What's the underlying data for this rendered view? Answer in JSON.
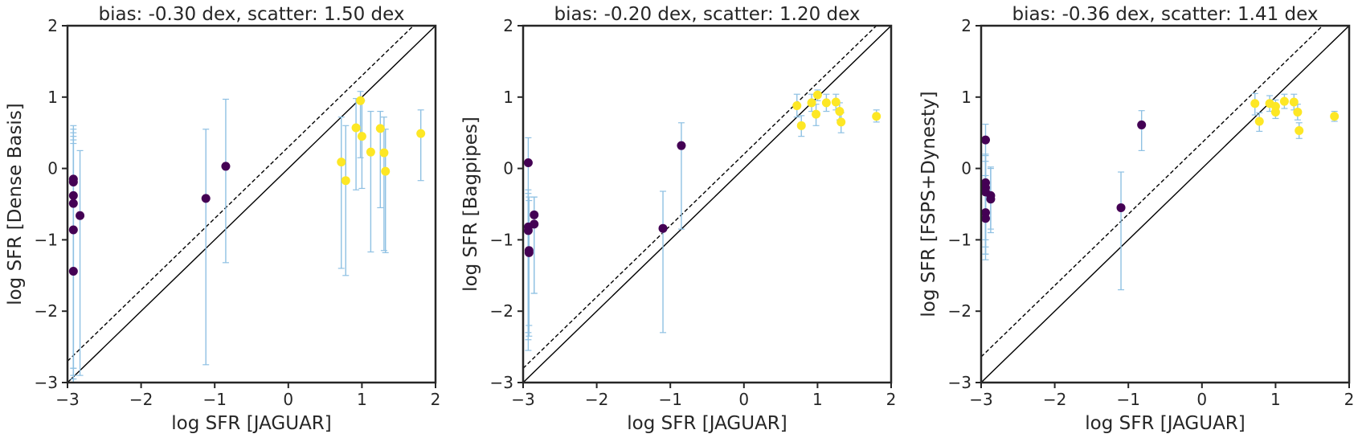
{
  "chart_data": [
    {
      "type": "scatter",
      "title": "bias: -0.30 dex, scatter: 1.50 dex",
      "xlabel": "log SFR [JAGUAR]",
      "ylabel": "log SFR [Dense Basis]",
      "xlim": [
        -3,
        2
      ],
      "ylim": [
        -3,
        2
      ],
      "xticks": [
        "−3",
        "−2",
        "−1",
        "0",
        "1",
        "2"
      ],
      "yticks": [
        "−3",
        "−2",
        "−1",
        "0",
        "1",
        "2"
      ],
      "grid": false,
      "reference_lines": [
        {
          "style": "solid",
          "slope": 1,
          "offset": 0
        },
        {
          "style": "dashed",
          "slope": 1,
          "offset": 0.3
        }
      ],
      "series": [
        {
          "color": "#440154",
          "points": [
            {
              "x": -2.92,
              "y": -0.15,
              "ylo": -3.1,
              "yhi": 0.6
            },
            {
              "x": -2.92,
              "y": -0.19,
              "ylo": -2.8,
              "yhi": 0.55
            },
            {
              "x": -2.92,
              "y": -0.38,
              "ylo": -2.9,
              "yhi": 0.35
            },
            {
              "x": -2.92,
              "y": -0.49,
              "ylo": -2.95,
              "yhi": 0.45
            },
            {
              "x": -2.92,
              "y": -0.86,
              "ylo": -2.8,
              "yhi": 0.5
            },
            {
              "x": -2.92,
              "y": -1.44,
              "ylo": -3.05,
              "yhi": 0.4
            },
            {
              "x": -2.83,
              "y": -0.66,
              "ylo": -2.9,
              "yhi": 0.25
            },
            {
              "x": -1.12,
              "y": -0.42,
              "ylo": -2.75,
              "yhi": 0.55
            },
            {
              "x": -0.85,
              "y": 0.03,
              "ylo": -1.32,
              "yhi": 0.97
            }
          ]
        },
        {
          "color": "#fde725",
          "points": [
            {
              "x": 0.72,
              "y": 0.09,
              "ylo": -1.4,
              "yhi": 0.72
            },
            {
              "x": 0.78,
              "y": -0.17,
              "ylo": -1.5,
              "yhi": 0.6
            },
            {
              "x": 0.92,
              "y": 0.57,
              "ylo": -0.3,
              "yhi": 0.98
            },
            {
              "x": 0.98,
              "y": 0.95,
              "ylo": 0.15,
              "yhi": 1.08
            },
            {
              "x": 1.0,
              "y": 0.45,
              "ylo": -0.28,
              "yhi": 0.95
            },
            {
              "x": 1.12,
              "y": 0.23,
              "ylo": -1.17,
              "yhi": 0.8
            },
            {
              "x": 1.25,
              "y": 0.56,
              "ylo": -0.55,
              "yhi": 0.8
            },
            {
              "x": 1.3,
              "y": 0.22,
              "ylo": -1.15,
              "yhi": 0.72
            },
            {
              "x": 1.32,
              "y": -0.04,
              "ylo": -1.18,
              "yhi": 0.55
            },
            {
              "x": 1.8,
              "y": 0.49,
              "ylo": -0.17,
              "yhi": 0.82
            }
          ]
        }
      ]
    },
    {
      "type": "scatter",
      "title": "bias: -0.20 dex, scatter: 1.20 dex",
      "xlabel": "log SFR [JAGUAR]",
      "ylabel": "log SFR [Bagpipes]",
      "xlim": [
        -3,
        2
      ],
      "ylim": [
        -3,
        2
      ],
      "xticks": [
        "−3",
        "−2",
        "−1",
        "0",
        "1",
        "2"
      ],
      "yticks": [
        "−3",
        "−2",
        "−1",
        "0",
        "1",
        "2"
      ],
      "grid": false,
      "reference_lines": [
        {
          "style": "solid",
          "slope": 1,
          "offset": 0
        },
        {
          "style": "dashed",
          "slope": 1,
          "offset": 0.2
        }
      ],
      "series": [
        {
          "color": "#440154",
          "points": [
            {
              "x": -2.93,
              "y": 0.08,
              "ylo": -2.3,
              "yhi": 0.43
            },
            {
              "x": -2.93,
              "y": -0.82,
              "ylo": -2.55,
              "yhi": -0.3
            },
            {
              "x": -2.93,
              "y": -0.87,
              "ylo": -2.4,
              "yhi": -0.35
            },
            {
              "x": -2.92,
              "y": -1.15,
              "ylo": -2.35,
              "yhi": -0.4
            },
            {
              "x": -2.92,
              "y": -1.18,
              "ylo": -2.2,
              "yhi": -0.45
            },
            {
              "x": -2.85,
              "y": -0.65,
              "ylo": -1.75,
              "yhi": -0.4
            },
            {
              "x": -2.85,
              "y": -0.78,
              "ylo": -1.75,
              "yhi": -0.4
            },
            {
              "x": -1.1,
              "y": -0.84,
              "ylo": -2.3,
              "yhi": -0.32
            },
            {
              "x": -0.85,
              "y": 0.32,
              "ylo": -0.85,
              "yhi": 0.64
            }
          ]
        },
        {
          "color": "#fde725",
          "points": [
            {
              "x": 0.72,
              "y": 0.88,
              "ylo": 0.72,
              "yhi": 1.04
            },
            {
              "x": 0.78,
              "y": 0.6,
              "ylo": 0.45,
              "yhi": 0.74
            },
            {
              "x": 0.92,
              "y": 0.92,
              "ylo": 0.8,
              "yhi": 1.04
            },
            {
              "x": 0.98,
              "y": 0.76,
              "ylo": 0.6,
              "yhi": 0.9
            },
            {
              "x": 1.0,
              "y": 1.03,
              "ylo": 0.95,
              "yhi": 1.1
            },
            {
              "x": 1.12,
              "y": 0.92,
              "ylo": 0.8,
              "yhi": 1.04
            },
            {
              "x": 1.25,
              "y": 0.93,
              "ylo": 0.82,
              "yhi": 1.04
            },
            {
              "x": 1.3,
              "y": 0.8,
              "ylo": 0.68,
              "yhi": 0.92
            },
            {
              "x": 1.32,
              "y": 0.65,
              "ylo": 0.5,
              "yhi": 0.78
            },
            {
              "x": 1.8,
              "y": 0.73,
              "ylo": 0.65,
              "yhi": 0.82
            }
          ]
        }
      ]
    },
    {
      "type": "scatter",
      "title": "bias: -0.36 dex, scatter: 1.41 dex",
      "xlabel": "log SFR [JAGUAR]",
      "ylabel": "log SFR [FSPS+Dynesty]",
      "xlim": [
        -3,
        2
      ],
      "ylim": [
        -3,
        2
      ],
      "xticks": [
        "−3",
        "−2",
        "−1",
        "0",
        "1",
        "2"
      ],
      "yticks": [
        "−3",
        "−2",
        "−1",
        "0",
        "1",
        "2"
      ],
      "grid": false,
      "reference_lines": [
        {
          "style": "solid",
          "slope": 1,
          "offset": 0
        },
        {
          "style": "dashed",
          "slope": 1,
          "offset": 0.36
        }
      ],
      "series": [
        {
          "color": "#440154",
          "points": [
            {
              "x": -2.94,
              "y": 0.4,
              "ylo": -0.3,
              "yhi": 0.62
            },
            {
              "x": -2.94,
              "y": -0.2,
              "ylo": -1.2,
              "yhi": 0.2
            },
            {
              "x": -2.94,
              "y": -0.27,
              "ylo": -1.28,
              "yhi": 0.18
            },
            {
              "x": -2.94,
              "y": -0.33,
              "ylo": -1.0,
              "yhi": 0.1
            },
            {
              "x": -2.94,
              "y": -0.62,
              "ylo": -1.1,
              "yhi": -0.1
            },
            {
              "x": -2.94,
              "y": -0.7,
              "ylo": -1.2,
              "yhi": -0.2
            },
            {
              "x": -2.87,
              "y": -0.38,
              "ylo": -0.9,
              "yhi": 0.02
            },
            {
              "x": -2.87,
              "y": -0.43,
              "ylo": -0.85,
              "yhi": 0.0
            },
            {
              "x": -1.1,
              "y": -0.55,
              "ylo": -1.7,
              "yhi": -0.05
            },
            {
              "x": -0.82,
              "y": 0.61,
              "ylo": 0.25,
              "yhi": 0.81
            }
          ]
        },
        {
          "color": "#fde725",
          "points": [
            {
              "x": 0.72,
              "y": 0.91,
              "ylo": 0.75,
              "yhi": 1.05
            },
            {
              "x": 0.78,
              "y": 0.66,
              "ylo": 0.52,
              "yhi": 0.78
            },
            {
              "x": 0.92,
              "y": 0.91,
              "ylo": 0.8,
              "yhi": 1.02
            },
            {
              "x": 1.0,
              "y": 0.79,
              "ylo": 0.7,
              "yhi": 0.9
            },
            {
              "x": 1.0,
              "y": 0.87,
              "ylo": 0.78,
              "yhi": 0.96
            },
            {
              "x": 1.12,
              "y": 0.94,
              "ylo": 0.84,
              "yhi": 1.04
            },
            {
              "x": 1.25,
              "y": 0.93,
              "ylo": 0.82,
              "yhi": 1.04
            },
            {
              "x": 1.3,
              "y": 0.79,
              "ylo": 0.68,
              "yhi": 0.9
            },
            {
              "x": 1.32,
              "y": 0.53,
              "ylo": 0.42,
              "yhi": 0.64
            },
            {
              "x": 1.8,
              "y": 0.73,
              "ylo": 0.66,
              "yhi": 0.8
            }
          ]
        }
      ]
    }
  ]
}
